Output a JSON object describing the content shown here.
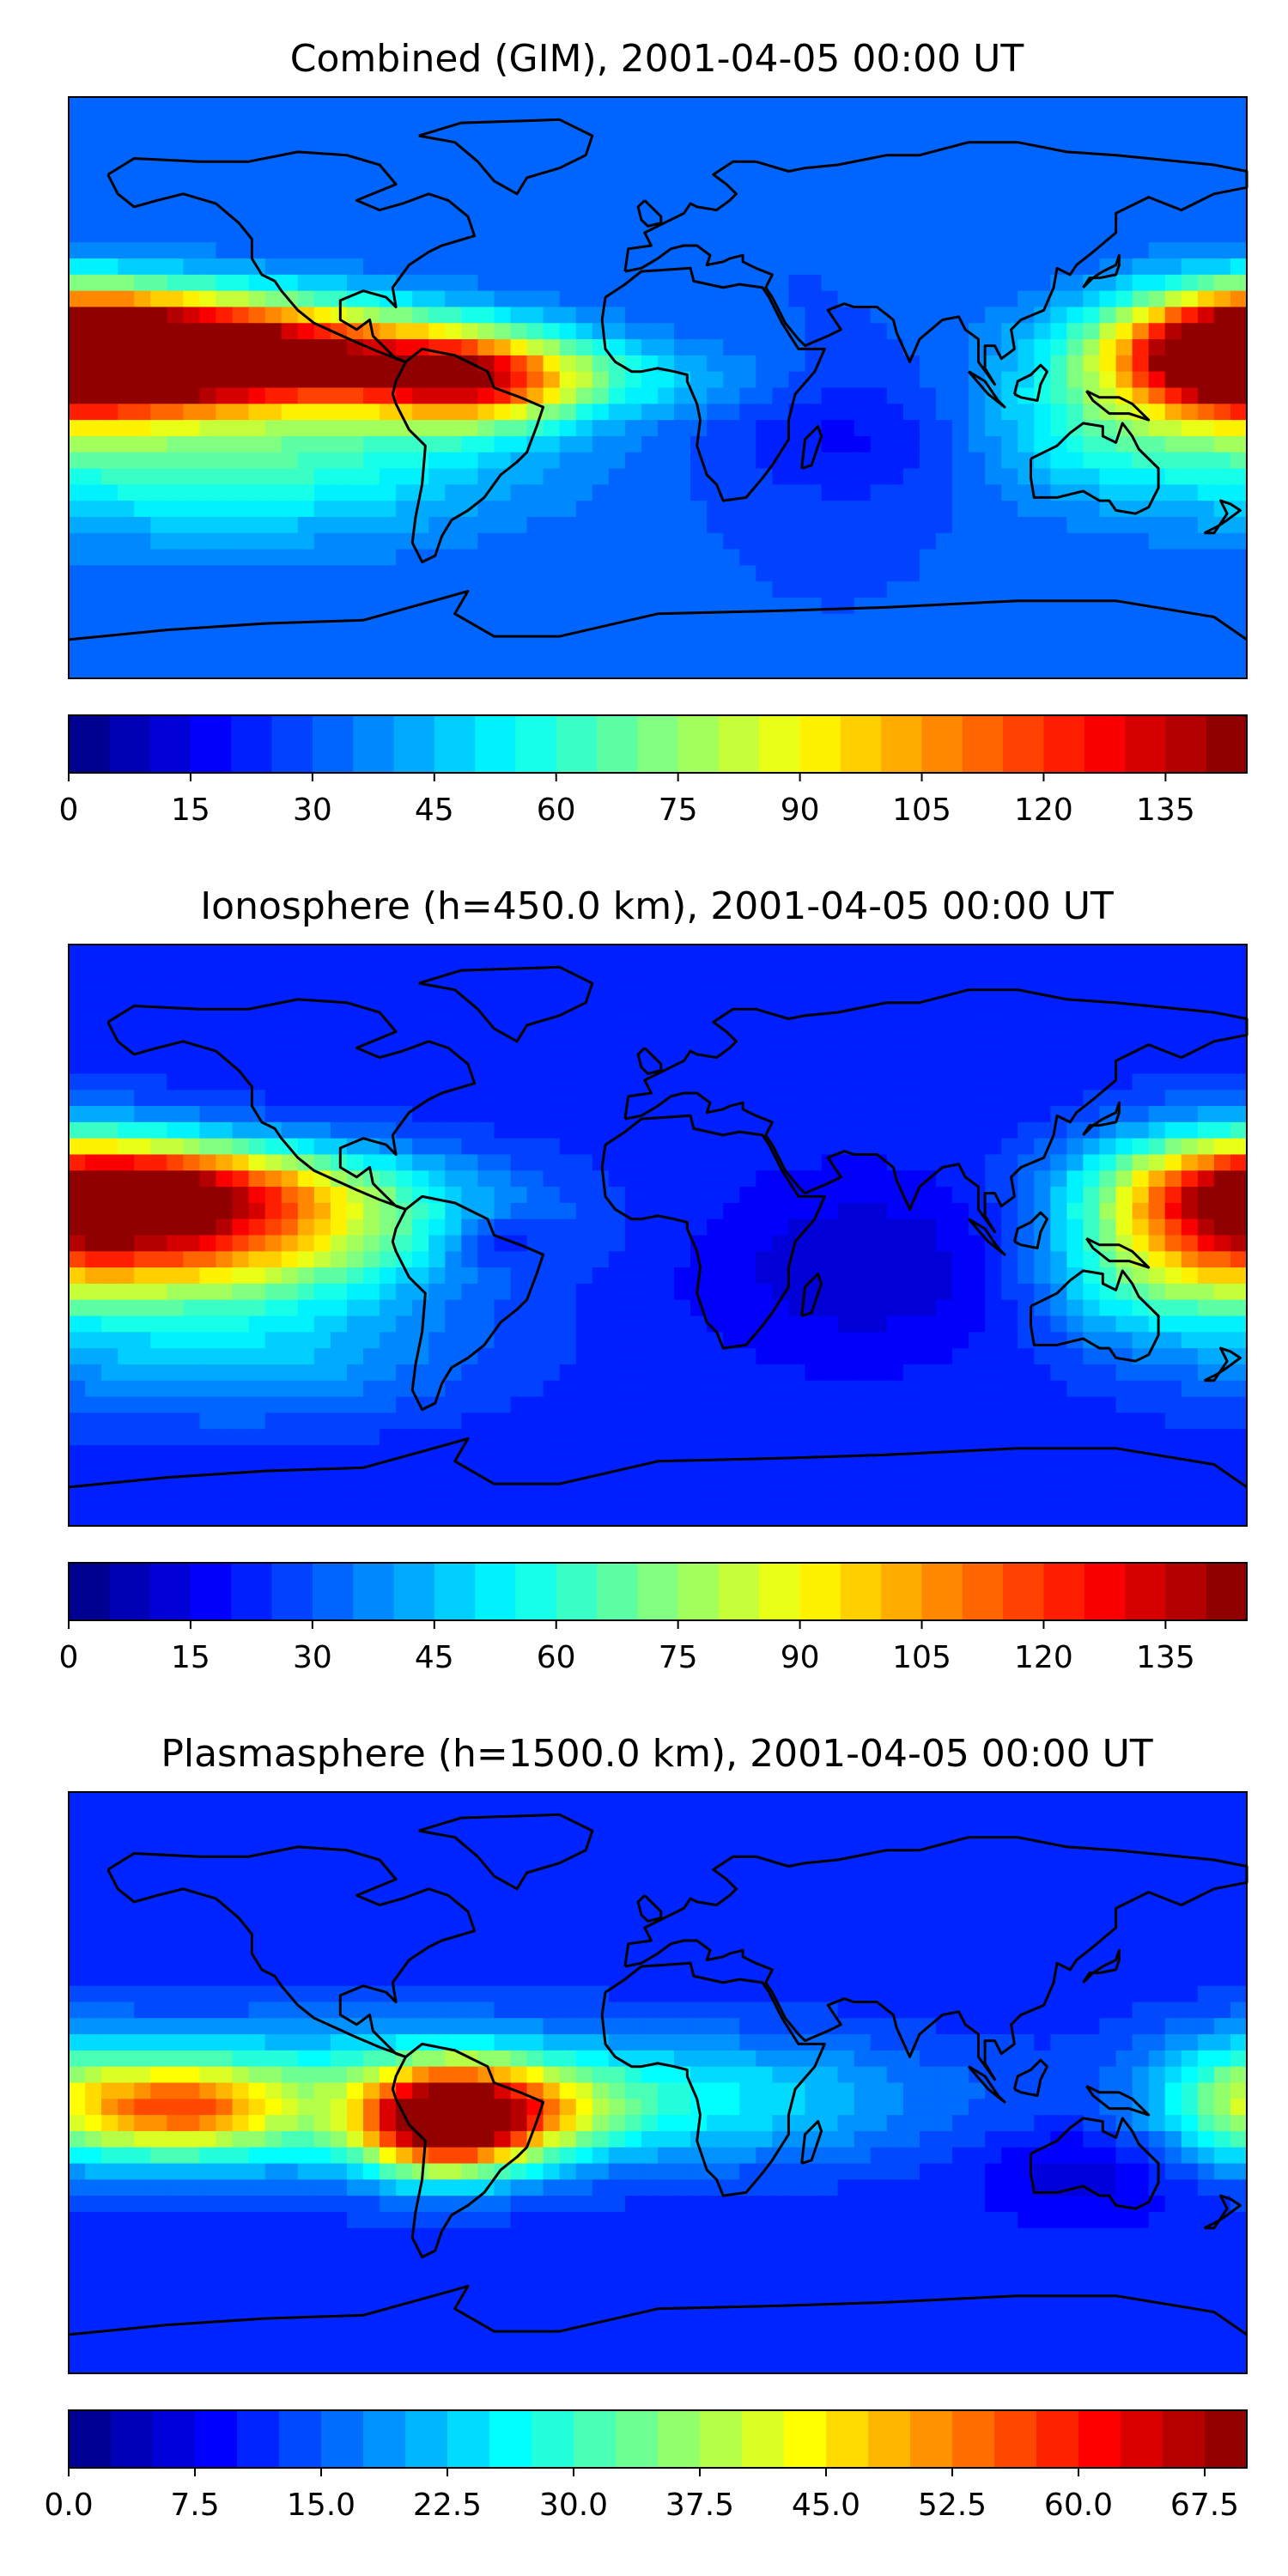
{
  "panels": [
    {
      "title": "Combined (GIM), 2001-04-05 00:00 UT",
      "colorbar": {
        "min": 0,
        "max": 145,
        "levels": 29,
        "ticks": [
          "0",
          "15",
          "30",
          "45",
          "60",
          "75",
          "90",
          "105",
          "120",
          "135"
        ],
        "tick_values": [
          0,
          15,
          30,
          45,
          60,
          75,
          90,
          105,
          120,
          135
        ]
      },
      "field": {
        "background": 30,
        "blobs": [
          {
            "lon": -150,
            "lat": 12,
            "slon": 45,
            "slat": 12,
            "amp": 100
          },
          {
            "lon": -110,
            "lat": 8,
            "slon": 50,
            "slat": 10,
            "amp": 55
          },
          {
            "lon": -58,
            "lat": 2,
            "slon": 22,
            "slat": 10,
            "amp": 65
          },
          {
            "lon": -20,
            "lat": 2,
            "slon": 35,
            "slat": 8,
            "amp": 18
          },
          {
            "lon": 178,
            "lat": 10,
            "slon": 25,
            "slat": 14,
            "amp": 85
          },
          {
            "lon": 135,
            "lat": -12,
            "slon": 28,
            "slat": 14,
            "amp": 20
          },
          {
            "lon": -130,
            "lat": -20,
            "slon": 60,
            "slat": 18,
            "amp": 35
          },
          {
            "lon": 60,
            "lat": -15,
            "slon": 30,
            "slat": 15,
            "amp": -12
          }
        ]
      }
    },
    {
      "title": "Ionosphere  (h=450.0 km), 2001-04-05 00:00 UT",
      "colorbar": {
        "min": 0,
        "max": 145,
        "levels": 29,
        "ticks": [
          "0",
          "15",
          "30",
          "45",
          "60",
          "75",
          "90",
          "105",
          "120",
          "135"
        ],
        "tick_values": [
          0,
          15,
          30,
          45,
          60,
          75,
          90,
          105,
          120,
          135
        ]
      },
      "field": {
        "background": 22,
        "blobs": [
          {
            "lon": -150,
            "lat": 15,
            "slon": 40,
            "slat": 10,
            "amp": 78
          },
          {
            "lon": -145,
            "lat": -5,
            "slon": 40,
            "slat": 12,
            "amp": 55
          },
          {
            "lon": -100,
            "lat": 5,
            "slon": 45,
            "slat": 14,
            "amp": 30
          },
          {
            "lon": -50,
            "lat": -2,
            "slon": 12,
            "slat": 6,
            "amp": -15
          },
          {
            "lon": 175,
            "lat": 10,
            "slon": 30,
            "slat": 16,
            "amp": 70
          },
          {
            "lon": 150,
            "lat": -15,
            "slon": 25,
            "slat": 14,
            "amp": 25
          },
          {
            "lon": -130,
            "lat": -35,
            "slon": 50,
            "slat": 15,
            "amp": 25
          },
          {
            "lon": 65,
            "lat": -10,
            "slon": 35,
            "slat": 18,
            "amp": -12
          }
        ]
      }
    },
    {
      "title": "Plasmasphere (h=1500.0 km), 2001-04-05 00:00 UT",
      "colorbar": {
        "min": 0,
        "max": 70,
        "levels": 28,
        "ticks": [
          "0.0",
          "7.5",
          "15.0",
          "22.5",
          "30.0",
          "37.5",
          "45.0",
          "52.5",
          "60.0",
          "67.5"
        ],
        "tick_values": [
          0,
          7.5,
          15,
          22.5,
          30,
          37.5,
          45,
          52.5,
          60,
          67.5
        ]
      },
      "field": {
        "background": 11,
        "blobs": [
          {
            "lon": -65,
            "lat": -12,
            "slon": 18,
            "slat": 11,
            "amp": 52
          },
          {
            "lon": -40,
            "lat": -8,
            "slon": 22,
            "slat": 10,
            "amp": 18
          },
          {
            "lon": -145,
            "lat": -8,
            "slon": 22,
            "slat": 10,
            "amp": 30
          },
          {
            "lon": -100,
            "lat": -5,
            "slon": 60,
            "slat": 16,
            "amp": 18
          },
          {
            "lon": 20,
            "lat": -5,
            "slon": 50,
            "slat": 14,
            "amp": 12
          },
          {
            "lon": 178,
            "lat": -5,
            "slon": 20,
            "slat": 14,
            "amp": 16
          },
          {
            "lon": 130,
            "lat": -28,
            "slon": 20,
            "slat": 10,
            "amp": -6
          }
        ]
      }
    }
  ]
}
